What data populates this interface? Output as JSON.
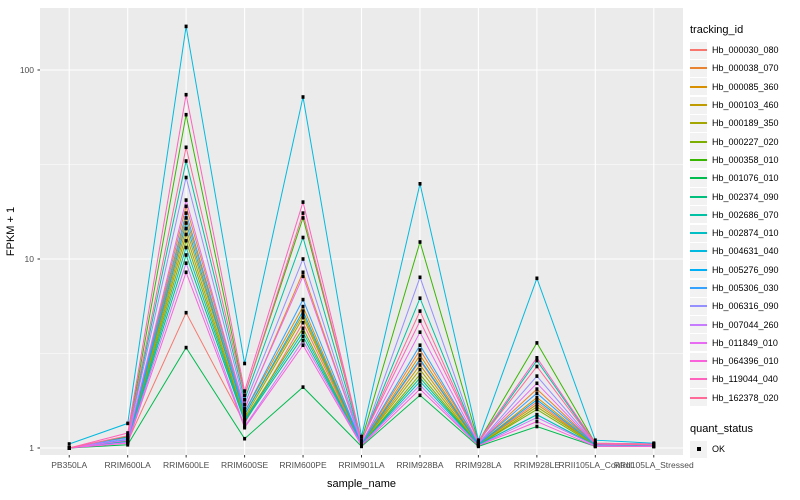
{
  "chart_data": {
    "type": "line",
    "title": "",
    "xlabel": "sample_name",
    "ylabel": "FPKM + 1",
    "y_scale": "log10",
    "y_ticks": [
      1,
      10,
      100
    ],
    "y_minor_ticks": [
      3.1623,
      31.623
    ],
    "ylim": [
      1,
      200
    ],
    "grid": "on",
    "legend_position": "right",
    "categories": [
      "PB350LA",
      "RRIM600LA",
      "RRIM600LE",
      "RRIM600SE",
      "RRIM600PE",
      "RRIM901LA",
      "RRIM928BA",
      "RRIM928LA",
      "RRIM928LE",
      "RRII105LA_Control",
      "RRII105LA_Stressed"
    ],
    "series": [
      {
        "name": "Hb_000030_080",
        "color": "#F8766D",
        "values": [
          1.0,
          1.08,
          5.2,
          1.35,
          4.6,
          1.05,
          2.9,
          1.05,
          1.75,
          1.04,
          1.03
        ]
      },
      {
        "name": "Hb_000038_070",
        "color": "#EA8331",
        "values": [
          1.0,
          1.1,
          19.0,
          1.6,
          8.5,
          1.06,
          3.3,
          1.06,
          2.05,
          1.05,
          1.04
        ]
      },
      {
        "name": "Hb_000085_360",
        "color": "#D89000",
        "values": [
          1.0,
          1.1,
          16.5,
          1.55,
          5.6,
          1.05,
          3.1,
          1.05,
          1.85,
          1.05,
          1.03
        ]
      },
      {
        "name": "Hb_000103_460",
        "color": "#C09B00",
        "values": [
          1.0,
          1.09,
          14.5,
          1.5,
          5.1,
          1.05,
          2.75,
          1.05,
          1.7,
          1.04,
          1.04
        ]
      },
      {
        "name": "Hb_000189_350",
        "color": "#A3A500",
        "values": [
          1.0,
          1.09,
          13.5,
          1.45,
          4.9,
          1.05,
          2.6,
          1.04,
          1.65,
          1.04,
          1.03
        ]
      },
      {
        "name": "Hb_000227_020",
        "color": "#7CAE00",
        "values": [
          1.0,
          1.08,
          12.5,
          1.42,
          4.3,
          1.04,
          2.45,
          1.04,
          1.6,
          1.03,
          1.03
        ]
      },
      {
        "name": "Hb_000358_010",
        "color": "#39B600",
        "values": [
          1.0,
          1.15,
          58.0,
          1.9,
          16.5,
          1.1,
          12.3,
          1.08,
          3.6,
          1.06,
          1.05
        ]
      },
      {
        "name": "Hb_001076_010",
        "color": "#00BB4E",
        "values": [
          1.0,
          1.04,
          3.4,
          1.12,
          2.1,
          1.02,
          1.9,
          1.02,
          1.3,
          1.02,
          1.02
        ]
      },
      {
        "name": "Hb_002374_090",
        "color": "#00BF7D",
        "values": [
          1.0,
          1.08,
          10.5,
          1.38,
          3.9,
          1.04,
          2.35,
          1.04,
          1.5,
          1.03,
          1.02
        ]
      },
      {
        "name": "Hb_002686_070",
        "color": "#00C1A3",
        "values": [
          1.0,
          1.14,
          33.0,
          1.8,
          13.0,
          1.08,
          6.2,
          1.07,
          2.9,
          1.05,
          1.04
        ]
      },
      {
        "name": "Hb_002874_010",
        "color": "#00BFC4",
        "values": [
          1.0,
          1.08,
          11.5,
          1.4,
          4.1,
          1.04,
          2.25,
          1.04,
          1.5,
          1.03,
          1.03
        ]
      },
      {
        "name": "Hb_004631_040",
        "color": "#00BAE0",
        "values": [
          1.05,
          1.35,
          170.0,
          2.8,
          72.0,
          1.15,
          25.0,
          1.1,
          7.9,
          1.1,
          1.06
        ]
      },
      {
        "name": "Hb_005276_090",
        "color": "#00B0F6",
        "values": [
          1.0,
          1.1,
          15.5,
          1.5,
          5.3,
          1.05,
          2.95,
          1.05,
          1.8,
          1.04,
          1.04
        ]
      },
      {
        "name": "Hb_005306_030",
        "color": "#35A2FF",
        "values": [
          1.0,
          1.11,
          17.5,
          1.55,
          6.1,
          1.06,
          3.5,
          1.06,
          1.95,
          1.05,
          1.04
        ]
      },
      {
        "name": "Hb_006316_090",
        "color": "#9590FF",
        "values": [
          1.0,
          1.13,
          27.0,
          1.7,
          10.0,
          1.07,
          8.0,
          1.06,
          2.4,
          1.05,
          1.04
        ]
      },
      {
        "name": "Hb_007044_260",
        "color": "#C77CFF",
        "values": [
          1.0,
          1.07,
          9.5,
          1.3,
          3.7,
          1.04,
          2.15,
          1.03,
          1.45,
          1.03,
          1.02
        ]
      },
      {
        "name": "Hb_011849_010",
        "color": "#E76BF3",
        "values": [
          1.0,
          1.1,
          20.5,
          1.62,
          8.1,
          1.06,
          4.1,
          1.06,
          2.2,
          1.05,
          1.04
        ]
      },
      {
        "name": "Hb_064396_010",
        "color": "#FA62DB",
        "values": [
          1.0,
          1.06,
          8.5,
          1.28,
          3.5,
          1.03,
          2.05,
          1.03,
          1.38,
          1.02,
          1.02
        ]
      },
      {
        "name": "Hb_119044_040",
        "color": "#FF62BC",
        "values": [
          1.0,
          1.2,
          74.0,
          2.0,
          20.0,
          1.1,
          4.7,
          1.09,
          3.0,
          1.06,
          1.05
        ]
      },
      {
        "name": "Hb_162378_020",
        "color": "#FF6A98",
        "values": [
          1.0,
          1.16,
          39.0,
          1.9,
          17.5,
          1.09,
          5.3,
          1.08,
          2.7,
          1.05,
          1.04
        ]
      }
    ],
    "legend": {
      "tracking_title": "tracking_id",
      "quant_title": "quant_status",
      "quant_label": "OK"
    },
    "colors": {
      "panel_bg": "#EBEBEB",
      "grid": "#FFFFFF",
      "tick_text": "#4D4D4D",
      "tick_mark": "#333333",
      "key_bg": "#F2F2F2",
      "point": "#000000",
      "background": "#FFFFFF"
    }
  }
}
